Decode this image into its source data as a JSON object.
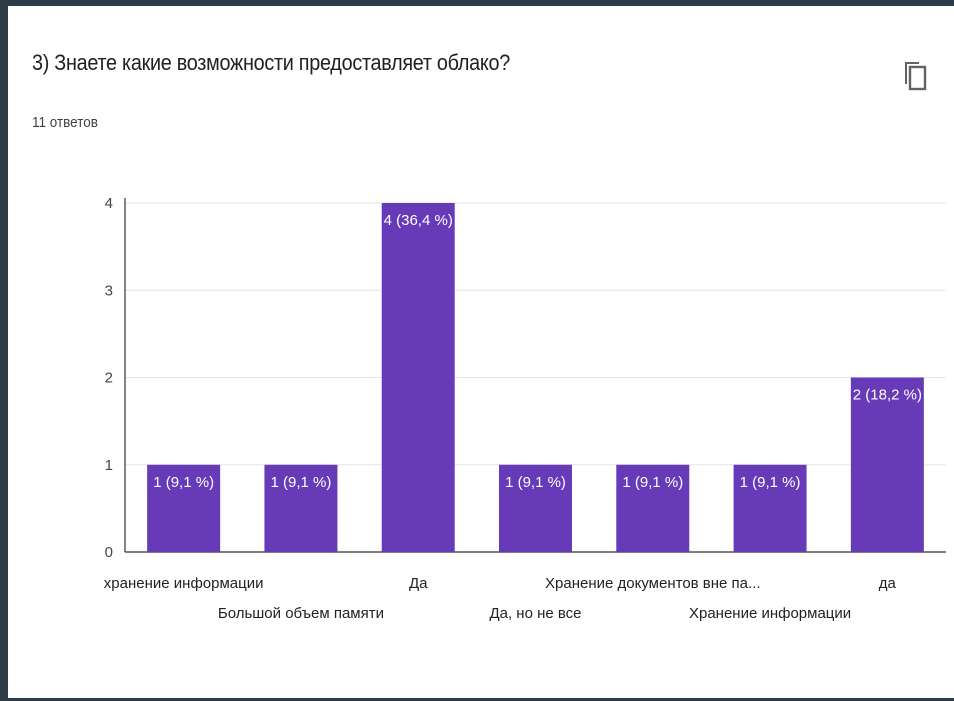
{
  "question": {
    "title": "3) Знаете какие возможности предоставляет облако?",
    "responses": "11 ответов",
    "copy_icon": "copy-icon"
  },
  "chart_data": {
    "type": "bar",
    "categories": [
      "хранение информации",
      "Большой объем памяти",
      "Да",
      "Да, но не все",
      "Хранение документов вне па...",
      "Хранение информации",
      "да"
    ],
    "values": [
      1,
      1,
      4,
      1,
      1,
      1,
      2
    ],
    "data_labels": [
      "1 (9,1 %)",
      "1 (9,1 %)",
      "4 (36,4 %)",
      "1 (9,1 %)",
      "1 (9,1 %)",
      "1 (9,1 %)",
      "2 (18,2 %)"
    ],
    "yticks": [
      "0",
      "1",
      "2",
      "3",
      "4"
    ],
    "ylim": [
      0,
      4
    ],
    "grid": true,
    "bar_color": "#673ab7",
    "title": "",
    "xlabel": "",
    "ylabel": ""
  }
}
